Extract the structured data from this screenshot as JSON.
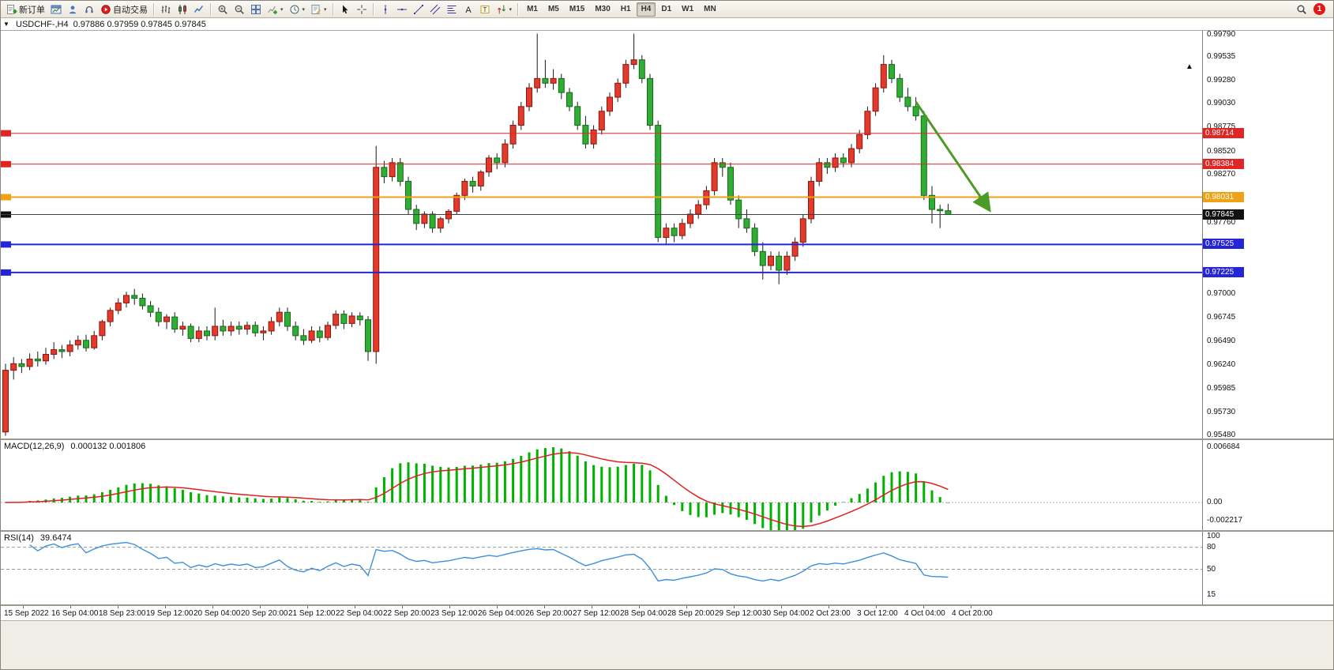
{
  "icons": {
    "collapse": "▼",
    "dropdown": "▾",
    "shift_marker": "▲"
  },
  "toolbar": {
    "buttons": [
      {
        "name": "new-order",
        "icon": "new-order",
        "label": "新订单"
      },
      {
        "name": "chart-window",
        "icon": "chart-window"
      },
      {
        "name": "market-watch",
        "icon": "profile"
      },
      {
        "name": "expert-advisors",
        "icon": "headset"
      },
      {
        "name": "auto-trading",
        "icon": "autotrade",
        "label": "自动交易"
      },
      {
        "sep": true
      },
      {
        "name": "bar-chart-mode",
        "icon": "bars"
      },
      {
        "name": "candlestick-mode",
        "icon": "candles"
      },
      {
        "name": "line-chart-mode",
        "icon": "line"
      },
      {
        "sep": true
      },
      {
        "name": "zoom-in",
        "icon": "zoom-in"
      },
      {
        "name": "zoom-out",
        "icon": "zoom-out"
      },
      {
        "name": "tile-windows",
        "icon": "tile"
      },
      {
        "name": "indicators",
        "icon": "indicators",
        "dropdown": true
      },
      {
        "name": "periods",
        "icon": "clock",
        "dropdown": true
      },
      {
        "name": "templates",
        "icon": "template",
        "dropdown": true
      },
      {
        "sep": true
      },
      {
        "name": "cursor",
        "icon": "cursor"
      },
      {
        "name": "crosshair",
        "icon": "crosshair"
      },
      {
        "sep": true
      },
      {
        "name": "vertical-line",
        "icon": "vline"
      },
      {
        "name": "horizontal-line",
        "icon": "hline"
      },
      {
        "name": "trendline",
        "icon": "trendline"
      },
      {
        "name": "equidistant-channel",
        "icon": "channel"
      },
      {
        "name": "fibonacci",
        "icon": "fibo"
      },
      {
        "name": "text",
        "icon": "textA"
      },
      {
        "name": "text-label",
        "icon": "textT"
      },
      {
        "name": "arrow-objects",
        "icon": "arrows",
        "dropdown": true
      },
      {
        "sep": true
      }
    ],
    "timeframes": [
      "M1",
      "M5",
      "M15",
      "M30",
      "H1",
      "H4",
      "D1",
      "W1",
      "MN"
    ],
    "active_timeframe": "H4",
    "notification_count": "1"
  },
  "chart_data": [
    {
      "type": "candlestick",
      "title": "USDCHF-,H4",
      "symbol": "USDCHF-",
      "timeframe": "H4",
      "ohlc_display": "0.97886 0.97959 0.97845 0.97845",
      "ylim": [
        0.9545,
        0.9981
      ],
      "price_ticks": [
        "0.99790",
        "0.99535",
        "0.99280",
        "0.99030",
        "0.98775",
        "0.98520",
        "0.98270",
        "0.97760",
        "0.97000",
        "0.96745",
        "0.96490",
        "0.96240",
        "0.95985",
        "0.95730",
        "0.95480"
      ],
      "time_labels": [
        "15 Sep 2022",
        "16 Sep 04:00",
        "18 Sep 23:00",
        "19 Sep 12:00",
        "20 Sep 04:00",
        "20 Sep 20:00",
        "21 Sep 12:00",
        "22 Sep 04:00",
        "22 Sep 20:00",
        "23 Sep 12:00",
        "26 Sep 04:00",
        "26 Sep 20:00",
        "27 Sep 12:00",
        "28 Sep 04:00",
        "28 Sep 20:00",
        "29 Sep 12:00",
        "30 Sep 04:00",
        "2 Oct 23:00",
        "3 Oct 12:00",
        "4 Oct 04:00",
        "4 Oct 20:00"
      ],
      "up_color": "#e23b2b",
      "down_color": "#2fae33",
      "hlines": [
        {
          "price": 0.98714,
          "label": "0.98714",
          "color": "#e02525",
          "width": 1
        },
        {
          "price": 0.98384,
          "label": "0.98384",
          "color": "#e02525",
          "width": 1
        },
        {
          "price": 0.98031,
          "label": "0.98031",
          "color": "#efa214",
          "width": 2
        },
        {
          "price": 0.97525,
          "label": "0.97525",
          "color": "#2525d8",
          "width": 2
        },
        {
          "price": 0.97225,
          "label": "0.97225",
          "color": "#2525d8",
          "width": 2
        }
      ],
      "current_price": {
        "price": 0.97845,
        "label": "0.97845",
        "line_color": "#404040",
        "badge_color": "#111111"
      },
      "trend_arrow": {
        "from_index": 113,
        "from_price": 0.9905,
        "to_index": 122,
        "to_price": 0.9791,
        "color": "#4c9a2a"
      },
      "ohlc": [
        [
          0.9552,
          0.9625,
          0.9548,
          0.9618
        ],
        [
          0.9618,
          0.9632,
          0.9608,
          0.9625
        ],
        [
          0.9625,
          0.963,
          0.9615,
          0.9622
        ],
        [
          0.9622,
          0.9636,
          0.9618,
          0.963
        ],
        [
          0.963,
          0.9638,
          0.9622,
          0.9628
        ],
        [
          0.9628,
          0.9642,
          0.9624,
          0.9635
        ],
        [
          0.9635,
          0.9648,
          0.963,
          0.964
        ],
        [
          0.964,
          0.9645,
          0.9631,
          0.9638
        ],
        [
          0.9638,
          0.965,
          0.9633,
          0.9645
        ],
        [
          0.9645,
          0.9655,
          0.964,
          0.965
        ],
        [
          0.965,
          0.9656,
          0.9638,
          0.9642
        ],
        [
          0.9642,
          0.966,
          0.964,
          0.9655
        ],
        [
          0.9655,
          0.9672,
          0.965,
          0.967
        ],
        [
          0.967,
          0.9685,
          0.9665,
          0.9682
        ],
        [
          0.9682,
          0.9695,
          0.9678,
          0.969
        ],
        [
          0.969,
          0.9702,
          0.9685,
          0.9698
        ],
        [
          0.9698,
          0.9705,
          0.9688,
          0.9695
        ],
        [
          0.9695,
          0.97,
          0.9683,
          0.9687
        ],
        [
          0.9687,
          0.9692,
          0.9675,
          0.968
        ],
        [
          0.968,
          0.9685,
          0.9665,
          0.967
        ],
        [
          0.967,
          0.9678,
          0.9662,
          0.9675
        ],
        [
          0.9675,
          0.968,
          0.9658,
          0.9662
        ],
        [
          0.9662,
          0.967,
          0.9655,
          0.9665
        ],
        [
          0.9665,
          0.9668,
          0.9648,
          0.9652
        ],
        [
          0.9652,
          0.9665,
          0.9648,
          0.966
        ],
        [
          0.966,
          0.9665,
          0.965,
          0.9655
        ],
        [
          0.9655,
          0.9685,
          0.965,
          0.9665
        ],
        [
          0.9665,
          0.9672,
          0.9655,
          0.966
        ],
        [
          0.966,
          0.967,
          0.9655,
          0.9665
        ],
        [
          0.9665,
          0.967,
          0.9656,
          0.9662
        ],
        [
          0.9662,
          0.967,
          0.9656,
          0.9666
        ],
        [
          0.9666,
          0.967,
          0.9654,
          0.9658
        ],
        [
          0.9658,
          0.9665,
          0.965,
          0.966
        ],
        [
          0.966,
          0.9675,
          0.9656,
          0.967
        ],
        [
          0.967,
          0.9685,
          0.9665,
          0.968
        ],
        [
          0.968,
          0.9685,
          0.966,
          0.9665
        ],
        [
          0.9665,
          0.967,
          0.965,
          0.9655
        ],
        [
          0.9655,
          0.9662,
          0.9645,
          0.965
        ],
        [
          0.965,
          0.9665,
          0.9647,
          0.966
        ],
        [
          0.966,
          0.9665,
          0.9648,
          0.9653
        ],
        [
          0.9653,
          0.967,
          0.965,
          0.9666
        ],
        [
          0.9666,
          0.9682,
          0.9662,
          0.9678
        ],
        [
          0.9678,
          0.9682,
          0.9662,
          0.9668
        ],
        [
          0.9668,
          0.968,
          0.9664,
          0.9676
        ],
        [
          0.9676,
          0.968,
          0.9666,
          0.9672
        ],
        [
          0.9672,
          0.9676,
          0.9628,
          0.9638
        ],
        [
          0.9638,
          0.9858,
          0.9625,
          0.9835
        ],
        [
          0.9835,
          0.9842,
          0.9818,
          0.9825
        ],
        [
          0.9825,
          0.9845,
          0.982,
          0.984
        ],
        [
          0.984,
          0.9845,
          0.9815,
          0.982
        ],
        [
          0.982,
          0.9825,
          0.9785,
          0.979
        ],
        [
          0.979,
          0.9795,
          0.9768,
          0.9775
        ],
        [
          0.9775,
          0.9788,
          0.977,
          0.9785
        ],
        [
          0.9785,
          0.9788,
          0.9765,
          0.977
        ],
        [
          0.977,
          0.9782,
          0.9765,
          0.978
        ],
        [
          0.978,
          0.979,
          0.9775,
          0.9788
        ],
        [
          0.9788,
          0.9808,
          0.9785,
          0.9805
        ],
        [
          0.9805,
          0.9823,
          0.98,
          0.982
        ],
        [
          0.982,
          0.9825,
          0.9808,
          0.9815
        ],
        [
          0.9815,
          0.9832,
          0.981,
          0.983
        ],
        [
          0.983,
          0.9848,
          0.9825,
          0.9845
        ],
        [
          0.9845,
          0.985,
          0.9833,
          0.984
        ],
        [
          0.984,
          0.9865,
          0.9835,
          0.986
        ],
        [
          0.986,
          0.9885,
          0.9855,
          0.988
        ],
        [
          0.988,
          0.9905,
          0.9875,
          0.99
        ],
        [
          0.99,
          0.9925,
          0.9895,
          0.992
        ],
        [
          0.992,
          0.9978,
          0.9915,
          0.993
        ],
        [
          0.993,
          0.995,
          0.992,
          0.9925
        ],
        [
          0.9925,
          0.994,
          0.9918,
          0.993
        ],
        [
          0.993,
          0.9935,
          0.9908,
          0.9915
        ],
        [
          0.9915,
          0.992,
          0.9895,
          0.99
        ],
        [
          0.99,
          0.9905,
          0.9875,
          0.988
        ],
        [
          0.988,
          0.989,
          0.9855,
          0.986
        ],
        [
          0.986,
          0.988,
          0.9855,
          0.9875
        ],
        [
          0.9875,
          0.99,
          0.987,
          0.9895
        ],
        [
          0.9895,
          0.9915,
          0.989,
          0.991
        ],
        [
          0.991,
          0.993,
          0.9905,
          0.9925
        ],
        [
          0.9925,
          0.995,
          0.992,
          0.9945
        ],
        [
          0.9945,
          0.9978,
          0.994,
          0.995
        ],
        [
          0.995,
          0.9955,
          0.9925,
          0.993
        ],
        [
          0.993,
          0.9935,
          0.9875,
          0.988
        ],
        [
          0.988,
          0.9885,
          0.9755,
          0.976
        ],
        [
          0.976,
          0.9775,
          0.9752,
          0.977
        ],
        [
          0.977,
          0.9775,
          0.9755,
          0.9762
        ],
        [
          0.9762,
          0.978,
          0.9758,
          0.9775
        ],
        [
          0.9775,
          0.979,
          0.977,
          0.9785
        ],
        [
          0.9785,
          0.98,
          0.978,
          0.9795
        ],
        [
          0.9795,
          0.9815,
          0.979,
          0.981
        ],
        [
          0.981,
          0.9845,
          0.9805,
          0.984
        ],
        [
          0.984,
          0.9845,
          0.9825,
          0.9835
        ],
        [
          0.9835,
          0.984,
          0.9795,
          0.98
        ],
        [
          0.98,
          0.9805,
          0.977,
          0.978
        ],
        [
          0.978,
          0.979,
          0.9765,
          0.977
        ],
        [
          0.977,
          0.9775,
          0.974,
          0.9745
        ],
        [
          0.9745,
          0.9755,
          0.9715,
          0.973
        ],
        [
          0.973,
          0.9745,
          0.9725,
          0.974
        ],
        [
          0.974,
          0.9745,
          0.971,
          0.9725
        ],
        [
          0.9725,
          0.9745,
          0.972,
          0.974
        ],
        [
          0.974,
          0.976,
          0.9735,
          0.9755
        ],
        [
          0.9755,
          0.9785,
          0.975,
          0.978
        ],
        [
          0.978,
          0.9825,
          0.9775,
          0.982
        ],
        [
          0.982,
          0.9845,
          0.9815,
          0.984
        ],
        [
          0.984,
          0.9845,
          0.9828,
          0.9835
        ],
        [
          0.9835,
          0.985,
          0.983,
          0.9845
        ],
        [
          0.9845,
          0.985,
          0.9835,
          0.984
        ],
        [
          0.984,
          0.986,
          0.9835,
          0.9855
        ],
        [
          0.9855,
          0.9875,
          0.985,
          0.987
        ],
        [
          0.987,
          0.99,
          0.9865,
          0.9895
        ],
        [
          0.9895,
          0.9925,
          0.989,
          0.992
        ],
        [
          0.992,
          0.9955,
          0.9915,
          0.9945
        ],
        [
          0.9945,
          0.995,
          0.9925,
          0.993
        ],
        [
          0.993,
          0.9935,
          0.9905,
          0.991
        ],
        [
          0.991,
          0.992,
          0.9895,
          0.99
        ],
        [
          0.99,
          0.991,
          0.9885,
          0.989
        ],
        [
          0.989,
          0.9895,
          0.98,
          0.9805
        ],
        [
          0.9805,
          0.9815,
          0.9775,
          0.979
        ],
        [
          0.979,
          0.9795,
          0.977,
          0.97886
        ],
        [
          0.97886,
          0.97959,
          0.97845,
          0.97845
        ]
      ]
    },
    {
      "type": "bar+line",
      "name": "MACD",
      "label": "MACD(12,26,9)",
      "values_text": "0.000132 0.001806",
      "params": [
        12,
        26,
        9
      ],
      "axis_ticks": [
        {
          "label": "0.006684",
          "value": 0.006684
        },
        {
          "label": "0.00",
          "value": 0
        },
        {
          "label": "-0.002217",
          "value": -0.002217
        }
      ],
      "axis_max": 0.006684,
      "histogram_color": "#00b200",
      "signal_color": "#e02020"
    },
    {
      "type": "line",
      "name": "RSI",
      "label": "RSI(14)",
      "value_text": "39.6474",
      "params": [
        14
      ],
      "levels": [
        80,
        50
      ],
      "axis_ticks": [
        {
          "label": "100",
          "value": 100
        },
        {
          "label": "80",
          "value": 80
        },
        {
          "label": "50",
          "value": 50
        },
        {
          "label": "15",
          "value": 15
        }
      ],
      "line_color": "#3d8fdd"
    }
  ]
}
